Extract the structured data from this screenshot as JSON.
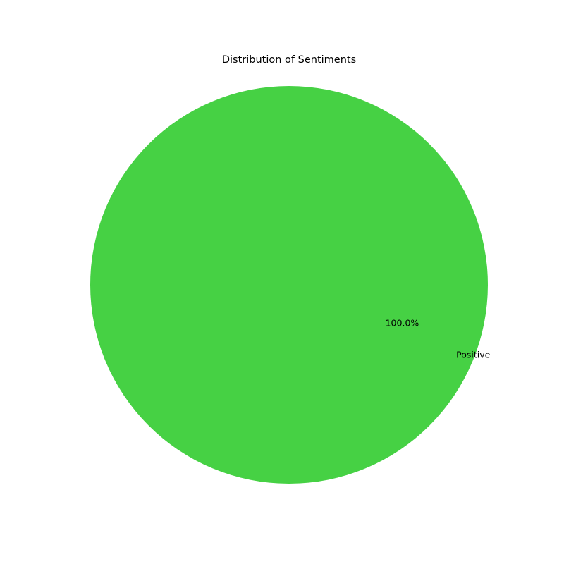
{
  "chart_data": {
    "type": "pie",
    "title": "Distribution of Sentiments",
    "categories": [
      "Positive"
    ],
    "values": [
      100.0
    ],
    "value_labels": [
      "100.0%"
    ],
    "colors": [
      "#46d144"
    ],
    "legend": "none"
  }
}
